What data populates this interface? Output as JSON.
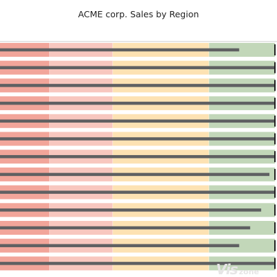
{
  "chart_data": {
    "type": "bullet",
    "title": "ACME corp. Sales by Region",
    "range": [
      0,
      100
    ],
    "bands": [
      {
        "from": 0,
        "to": 18,
        "color": "#f2a59a"
      },
      {
        "from": 18,
        "to": 41,
        "color": "#f8c7bf"
      },
      {
        "from": 41,
        "to": 76,
        "color": "#fde2b3"
      },
      {
        "from": 76,
        "to": 100,
        "color": "#c2d7b9"
      }
    ],
    "bullets": [
      {
        "value": 87,
        "target": 100
      },
      {
        "value": 100,
        "target": 100
      },
      {
        "value": 100,
        "target": 100
      },
      {
        "value": 100,
        "target": 100
      },
      {
        "value": 100,
        "target": 100
      },
      {
        "value": 100,
        "target": 100
      },
      {
        "value": 100,
        "target": 100
      },
      {
        "value": 98,
        "target": 100
      },
      {
        "value": 100,
        "target": 100
      },
      {
        "value": 95,
        "target": 100
      },
      {
        "value": 91,
        "target": 100
      },
      {
        "value": 87,
        "target": 100
      },
      {
        "value": 100,
        "target": 100
      }
    ],
    "bar_color": "#5f6062",
    "target_color": "#222222",
    "separator_color": "#cccccc"
  },
  "watermark": {
    "part1": "Vis",
    "part2": "zone"
  }
}
